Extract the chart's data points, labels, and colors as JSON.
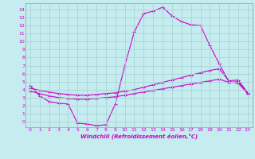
{
  "xlabel": "Windchill (Refroidissement éolien,°C)",
  "bg_color": "#c5ecee",
  "grid_color": "#aad4d7",
  "line_color": "#cc00cc",
  "x_ticks": [
    0,
    1,
    2,
    3,
    4,
    5,
    6,
    7,
    8,
    9,
    10,
    11,
    12,
    13,
    14,
    15,
    16,
    17,
    18,
    19,
    20,
    21,
    22,
    23
  ],
  "y_ticks": [
    0,
    1,
    2,
    3,
    4,
    5,
    6,
    7,
    8,
    9,
    10,
    11,
    12,
    13,
    14
  ],
  "ylim": [
    -0.7,
    14.8
  ],
  "xlim": [
    -0.5,
    23.5
  ],
  "curve1_x": [
    0,
    1,
    2,
    3,
    4,
    5,
    6,
    7,
    8,
    9,
    10,
    11,
    12,
    13,
    14,
    15,
    16,
    17,
    18,
    19,
    20,
    21,
    22,
    23
  ],
  "curve1_y": [
    4.5,
    3.2,
    2.5,
    2.3,
    2.2,
    -0.2,
    -0.3,
    -0.5,
    -0.4,
    2.2,
    7.0,
    11.2,
    13.5,
    13.8,
    14.3,
    13.2,
    12.5,
    12.1,
    12.0,
    9.5,
    7.2,
    5.0,
    4.8,
    3.5
  ],
  "curve2_x": [
    0,
    1,
    2,
    3,
    4,
    5,
    6,
    7,
    8,
    9,
    10,
    11,
    12,
    13,
    14,
    15,
    16,
    17,
    18,
    19,
    20,
    21,
    22,
    23
  ],
  "curve2_y": [
    3.8,
    3.5,
    3.2,
    3.0,
    2.9,
    2.8,
    2.8,
    2.9,
    3.0,
    3.1,
    3.3,
    3.5,
    3.7,
    3.9,
    4.1,
    4.3,
    4.5,
    4.7,
    4.9,
    5.1,
    5.3,
    4.9,
    5.0,
    3.5
  ],
  "curve3_x": [
    0,
    1,
    2,
    3,
    4,
    5,
    6,
    7,
    8,
    9,
    10,
    11,
    12,
    13,
    14,
    15,
    16,
    17,
    18,
    19,
    20,
    21,
    22,
    23
  ],
  "curve3_y": [
    4.2,
    3.9,
    3.7,
    3.5,
    3.4,
    3.3,
    3.3,
    3.4,
    3.5,
    3.6,
    3.8,
    4.0,
    4.3,
    4.6,
    4.9,
    5.2,
    5.5,
    5.8,
    6.1,
    6.4,
    6.6,
    5.1,
    5.2,
    3.6
  ]
}
